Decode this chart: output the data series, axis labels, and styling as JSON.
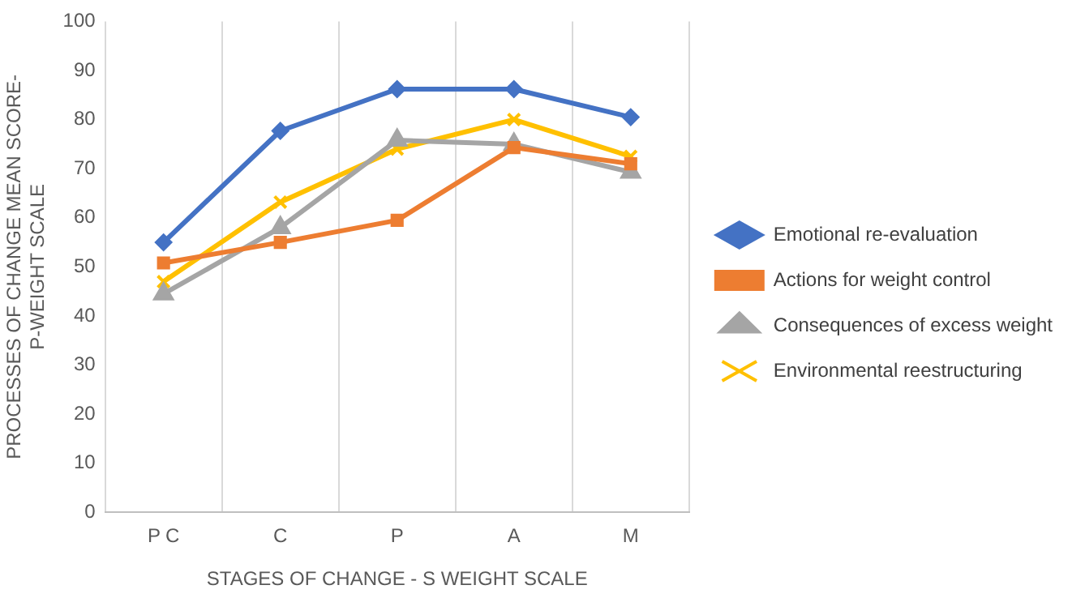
{
  "chart_data": {
    "type": "line",
    "xlabel": "STAGES OF CHANGE - S WEIGHT SCALE",
    "ylabel": "PROCESSES OF CHANGE MEAN SCORE- P-WEIGHT SCALE",
    "categories": [
      "P C",
      "C",
      "P",
      "A",
      "M"
    ],
    "series": [
      {
        "name": "Emotional re-evaluation",
        "color": "#4472c4",
        "marker": "diamond",
        "values": [
          55,
          77.7,
          86.2,
          86.2,
          80.5
        ]
      },
      {
        "name": "Actions for weight control",
        "color": "#ed7d31",
        "marker": "square",
        "values": [
          50.8,
          55,
          59.5,
          74.3,
          71
        ]
      },
      {
        "name": "Consequences of excess weight",
        "color": "#a5a5a5",
        "marker": "triangle",
        "values": [
          44.5,
          58,
          75.8,
          75,
          69.3
        ]
      },
      {
        "name": "Environmental reestructuring",
        "color": "#ffc000",
        "marker": "cross",
        "values": [
          47,
          63.2,
          74,
          80,
          72.5
        ]
      }
    ],
    "ylim": [
      0,
      100
    ],
    "yticks": [
      0,
      10,
      20,
      30,
      40,
      50,
      60,
      70,
      80,
      90,
      100
    ],
    "grid": "x",
    "legend": "right",
    "line_style": "solid"
  }
}
